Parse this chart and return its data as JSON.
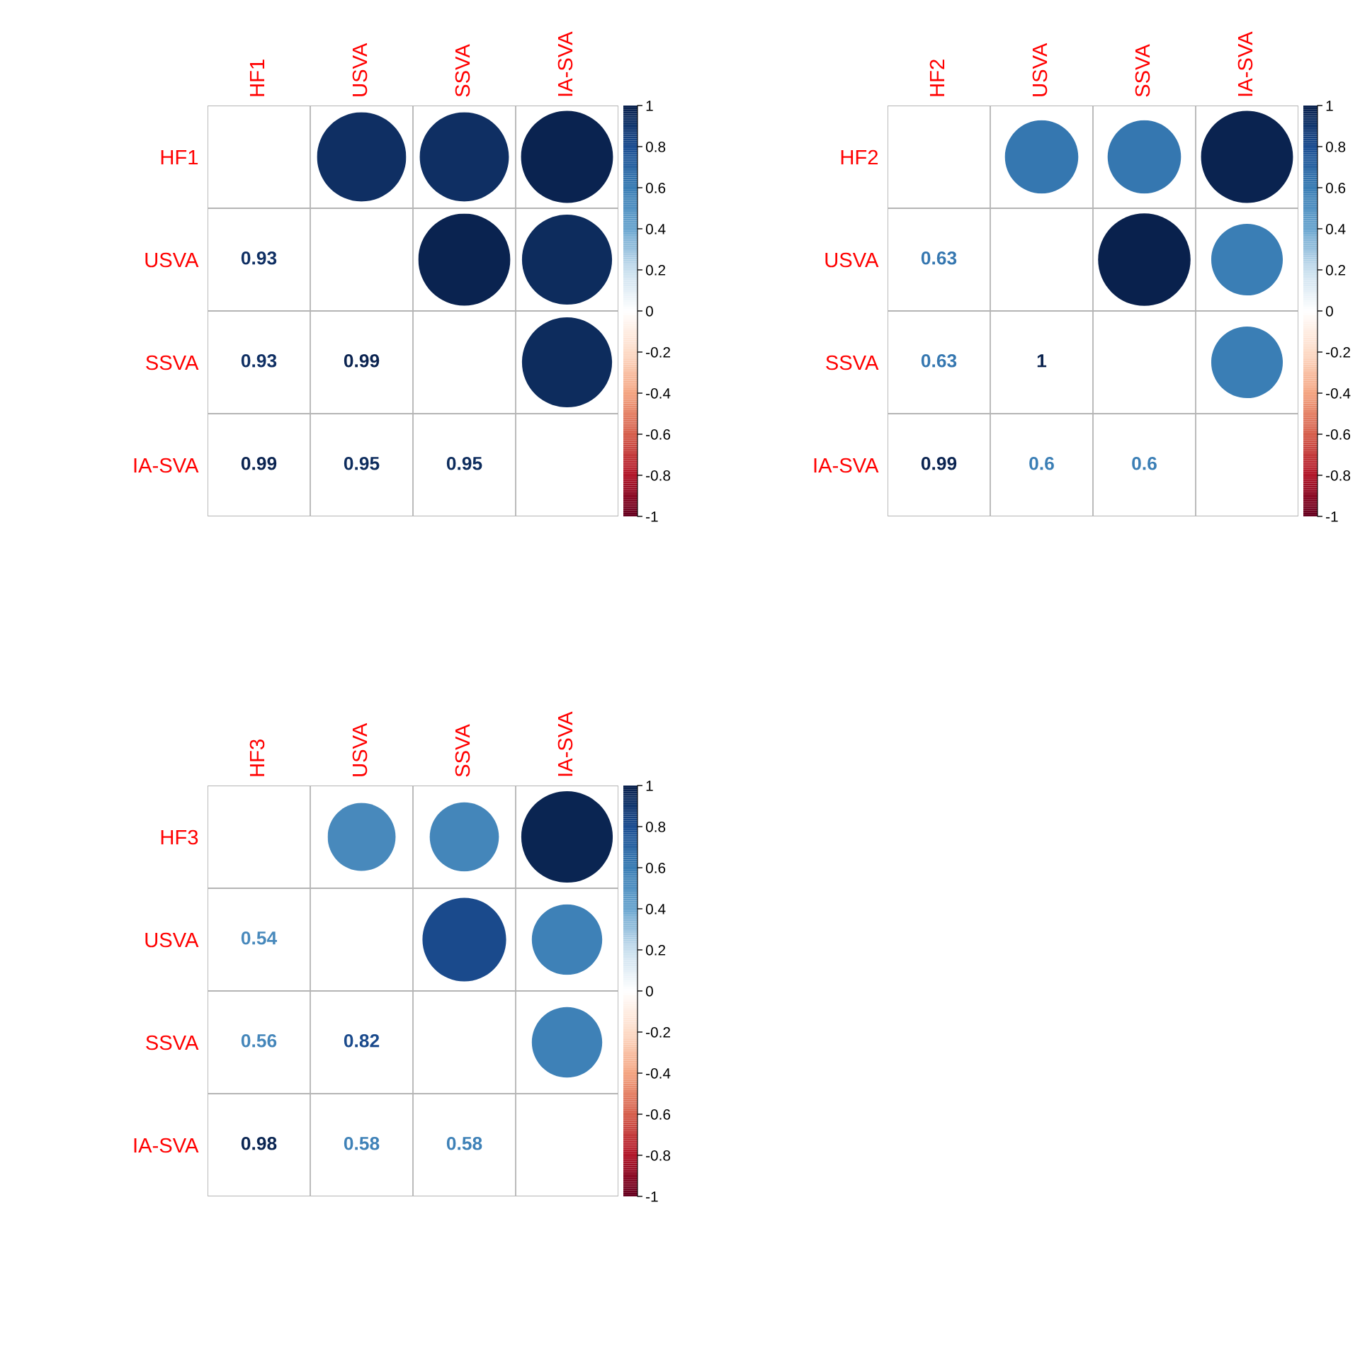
{
  "chart_data": [
    {
      "type": "heatmap",
      "categories": [
        "HF1",
        "USVA",
        "SSVA",
        "IA-SVA"
      ],
      "y_categories": [
        "HF1",
        "USVA",
        "SSVA",
        "IA-SVA"
      ],
      "cells": [
        [
          null,
          0.93,
          0.93,
          0.99
        ],
        [
          null,
          null,
          0.99,
          0.95
        ],
        [
          null,
          null,
          null,
          0.95
        ],
        [
          null,
          null,
          null,
          null
        ]
      ],
      "cell_labels": [
        [
          null,
          null,
          null,
          null
        ],
        [
          "0.93",
          null,
          null,
          null
        ],
        [
          "0.93",
          "0.99",
          null,
          null
        ],
        [
          "0.99",
          "0.95",
          "0.95",
          null
        ]
      ],
      "clim": [
        -1,
        1
      ],
      "cticks": [
        -1,
        -0.8,
        -0.6,
        -0.4,
        -0.2,
        0,
        0.2,
        0.4,
        0.6,
        0.8,
        1
      ]
    },
    {
      "type": "heatmap",
      "categories": [
        "HF2",
        "USVA",
        "SSVA",
        "IA-SVA"
      ],
      "y_categories": [
        "HF2",
        "USVA",
        "SSVA",
        "IA-SVA"
      ],
      "cells": [
        [
          null,
          0.63,
          0.63,
          0.99
        ],
        [
          null,
          null,
          1,
          0.6
        ],
        [
          null,
          null,
          null,
          0.6
        ],
        [
          null,
          null,
          null,
          null
        ]
      ],
      "cell_labels": [
        [
          null,
          null,
          null,
          null
        ],
        [
          "0.63",
          null,
          null,
          null
        ],
        [
          "0.63",
          "1",
          null,
          null
        ],
        [
          "0.99",
          "0.6",
          "0.6",
          null
        ]
      ],
      "clim": [
        -1,
        1
      ],
      "cticks": [
        -1,
        -0.8,
        -0.6,
        -0.4,
        -0.2,
        0,
        0.2,
        0.4,
        0.6,
        0.8,
        1
      ]
    },
    {
      "type": "heatmap",
      "categories": [
        "HF3",
        "USVA",
        "SSVA",
        "IA-SVA"
      ],
      "y_categories": [
        "HF3",
        "USVA",
        "SSVA",
        "IA-SVA"
      ],
      "cells": [
        [
          null,
          0.54,
          0.56,
          0.98
        ],
        [
          null,
          null,
          0.82,
          0.58
        ],
        [
          null,
          null,
          null,
          0.58
        ],
        [
          null,
          null,
          null,
          null
        ]
      ],
      "cell_labels": [
        [
          null,
          null,
          null,
          null
        ],
        [
          "0.54",
          null,
          null,
          null
        ],
        [
          "0.56",
          "0.82",
          null,
          null
        ],
        [
          "0.98",
          "0.58",
          "0.58",
          null
        ]
      ],
      "clim": [
        -1,
        1
      ],
      "cticks": [
        -1,
        -0.8,
        -0.6,
        -0.4,
        -0.2,
        0,
        0.2,
        0.4,
        0.6,
        0.8,
        1
      ]
    }
  ]
}
